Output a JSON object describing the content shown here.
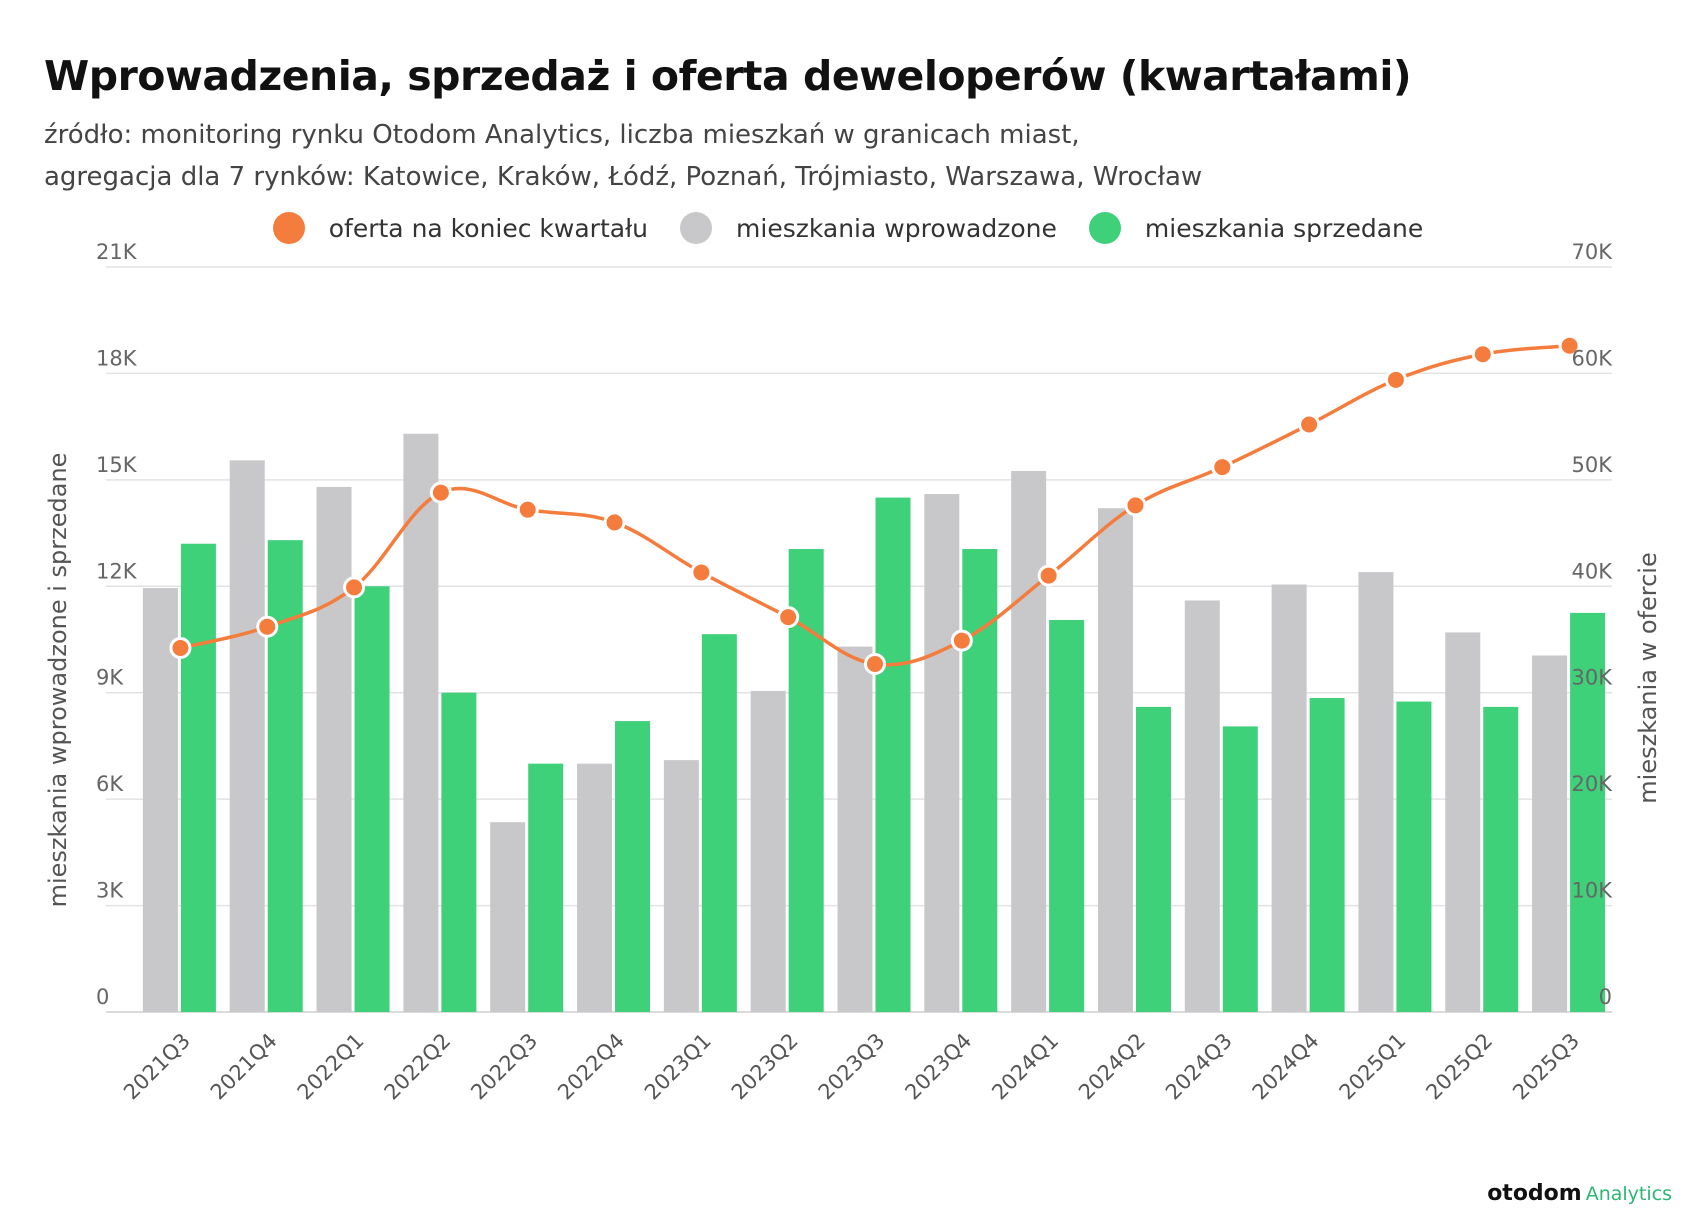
{
  "header": {
    "title": "Wprowadzenia, sprzedaż i oferta deweloperów (kwartałami)",
    "subtitle_line1": "źródło: monitoring rynku Otodom Analytics, liczba mieszkań w granicach miast,",
    "subtitle_line2": "agregacja dla 7 rynków: Katowice, Kraków, Łódź, Poznań, Trójmiasto, Warszawa, Wrocław"
  },
  "legend": {
    "items": [
      {
        "label": "oferta na koniec kwartału",
        "color": "#f47c3c"
      },
      {
        "label": "mieszkania wprowadzone",
        "color": "#c8c8ca"
      },
      {
        "label": "mieszkania sprzedane",
        "color": "#3fd07a"
      }
    ]
  },
  "brand": {
    "name": "otodom",
    "suffix": "Analytics"
  },
  "chart_data": {
    "type": "bar",
    "title": "Wprowadzenia, sprzedaż i oferta deweloperów (kwartałami)",
    "categories": [
      "2021Q3",
      "2021Q4",
      "2022Q1",
      "2022Q2",
      "2022Q3",
      "2022Q4",
      "2023Q1",
      "2023Q2",
      "2023Q3",
      "2023Q4",
      "2024Q1",
      "2024Q2",
      "2024Q3",
      "2024Q4",
      "2025Q1",
      "2025Q2",
      "2025Q3"
    ],
    "series": [
      {
        "name": "mieszkania wprowadzone",
        "type": "bar",
        "axis": "left",
        "color": "#c8c8ca",
        "values": [
          11950,
          15550,
          14800,
          16300,
          5350,
          7000,
          7100,
          9050,
          10300,
          14600,
          15250,
          14200,
          11600,
          12050,
          12400,
          10700,
          10050
        ]
      },
      {
        "name": "mieszkania sprzedane",
        "type": "bar",
        "axis": "left",
        "color": "#3fd07a",
        "values": [
          13200,
          13300,
          12000,
          9000,
          7000,
          8200,
          10650,
          13050,
          14500,
          13050,
          11050,
          8600,
          8050,
          8850,
          8750,
          8600,
          11250
        ]
      },
      {
        "name": "oferta na koniec kwartału",
        "type": "line",
        "axis": "right",
        "color": "#f47c3c",
        "values": [
          34200,
          36200,
          39900,
          48800,
          47200,
          46000,
          41300,
          37100,
          32700,
          34900,
          41000,
          47600,
          51200,
          55200,
          59400,
          61800,
          62600
        ]
      }
    ],
    "ylabel": "mieszkania wprowadzone i sprzedane",
    "ylabel_right": "mieszkania w ofercie",
    "ylim": [
      0,
      21000
    ],
    "ylim_right": [
      0,
      70000
    ],
    "yticks": [
      "0",
      "3K",
      "6K",
      "9K",
      "12K",
      "15K",
      "18K",
      "21K"
    ],
    "yticks_right": [
      "0",
      "10K",
      "20K",
      "30K",
      "40K",
      "50K",
      "60K",
      "70K"
    ],
    "grid": true,
    "legend_position": "top"
  }
}
